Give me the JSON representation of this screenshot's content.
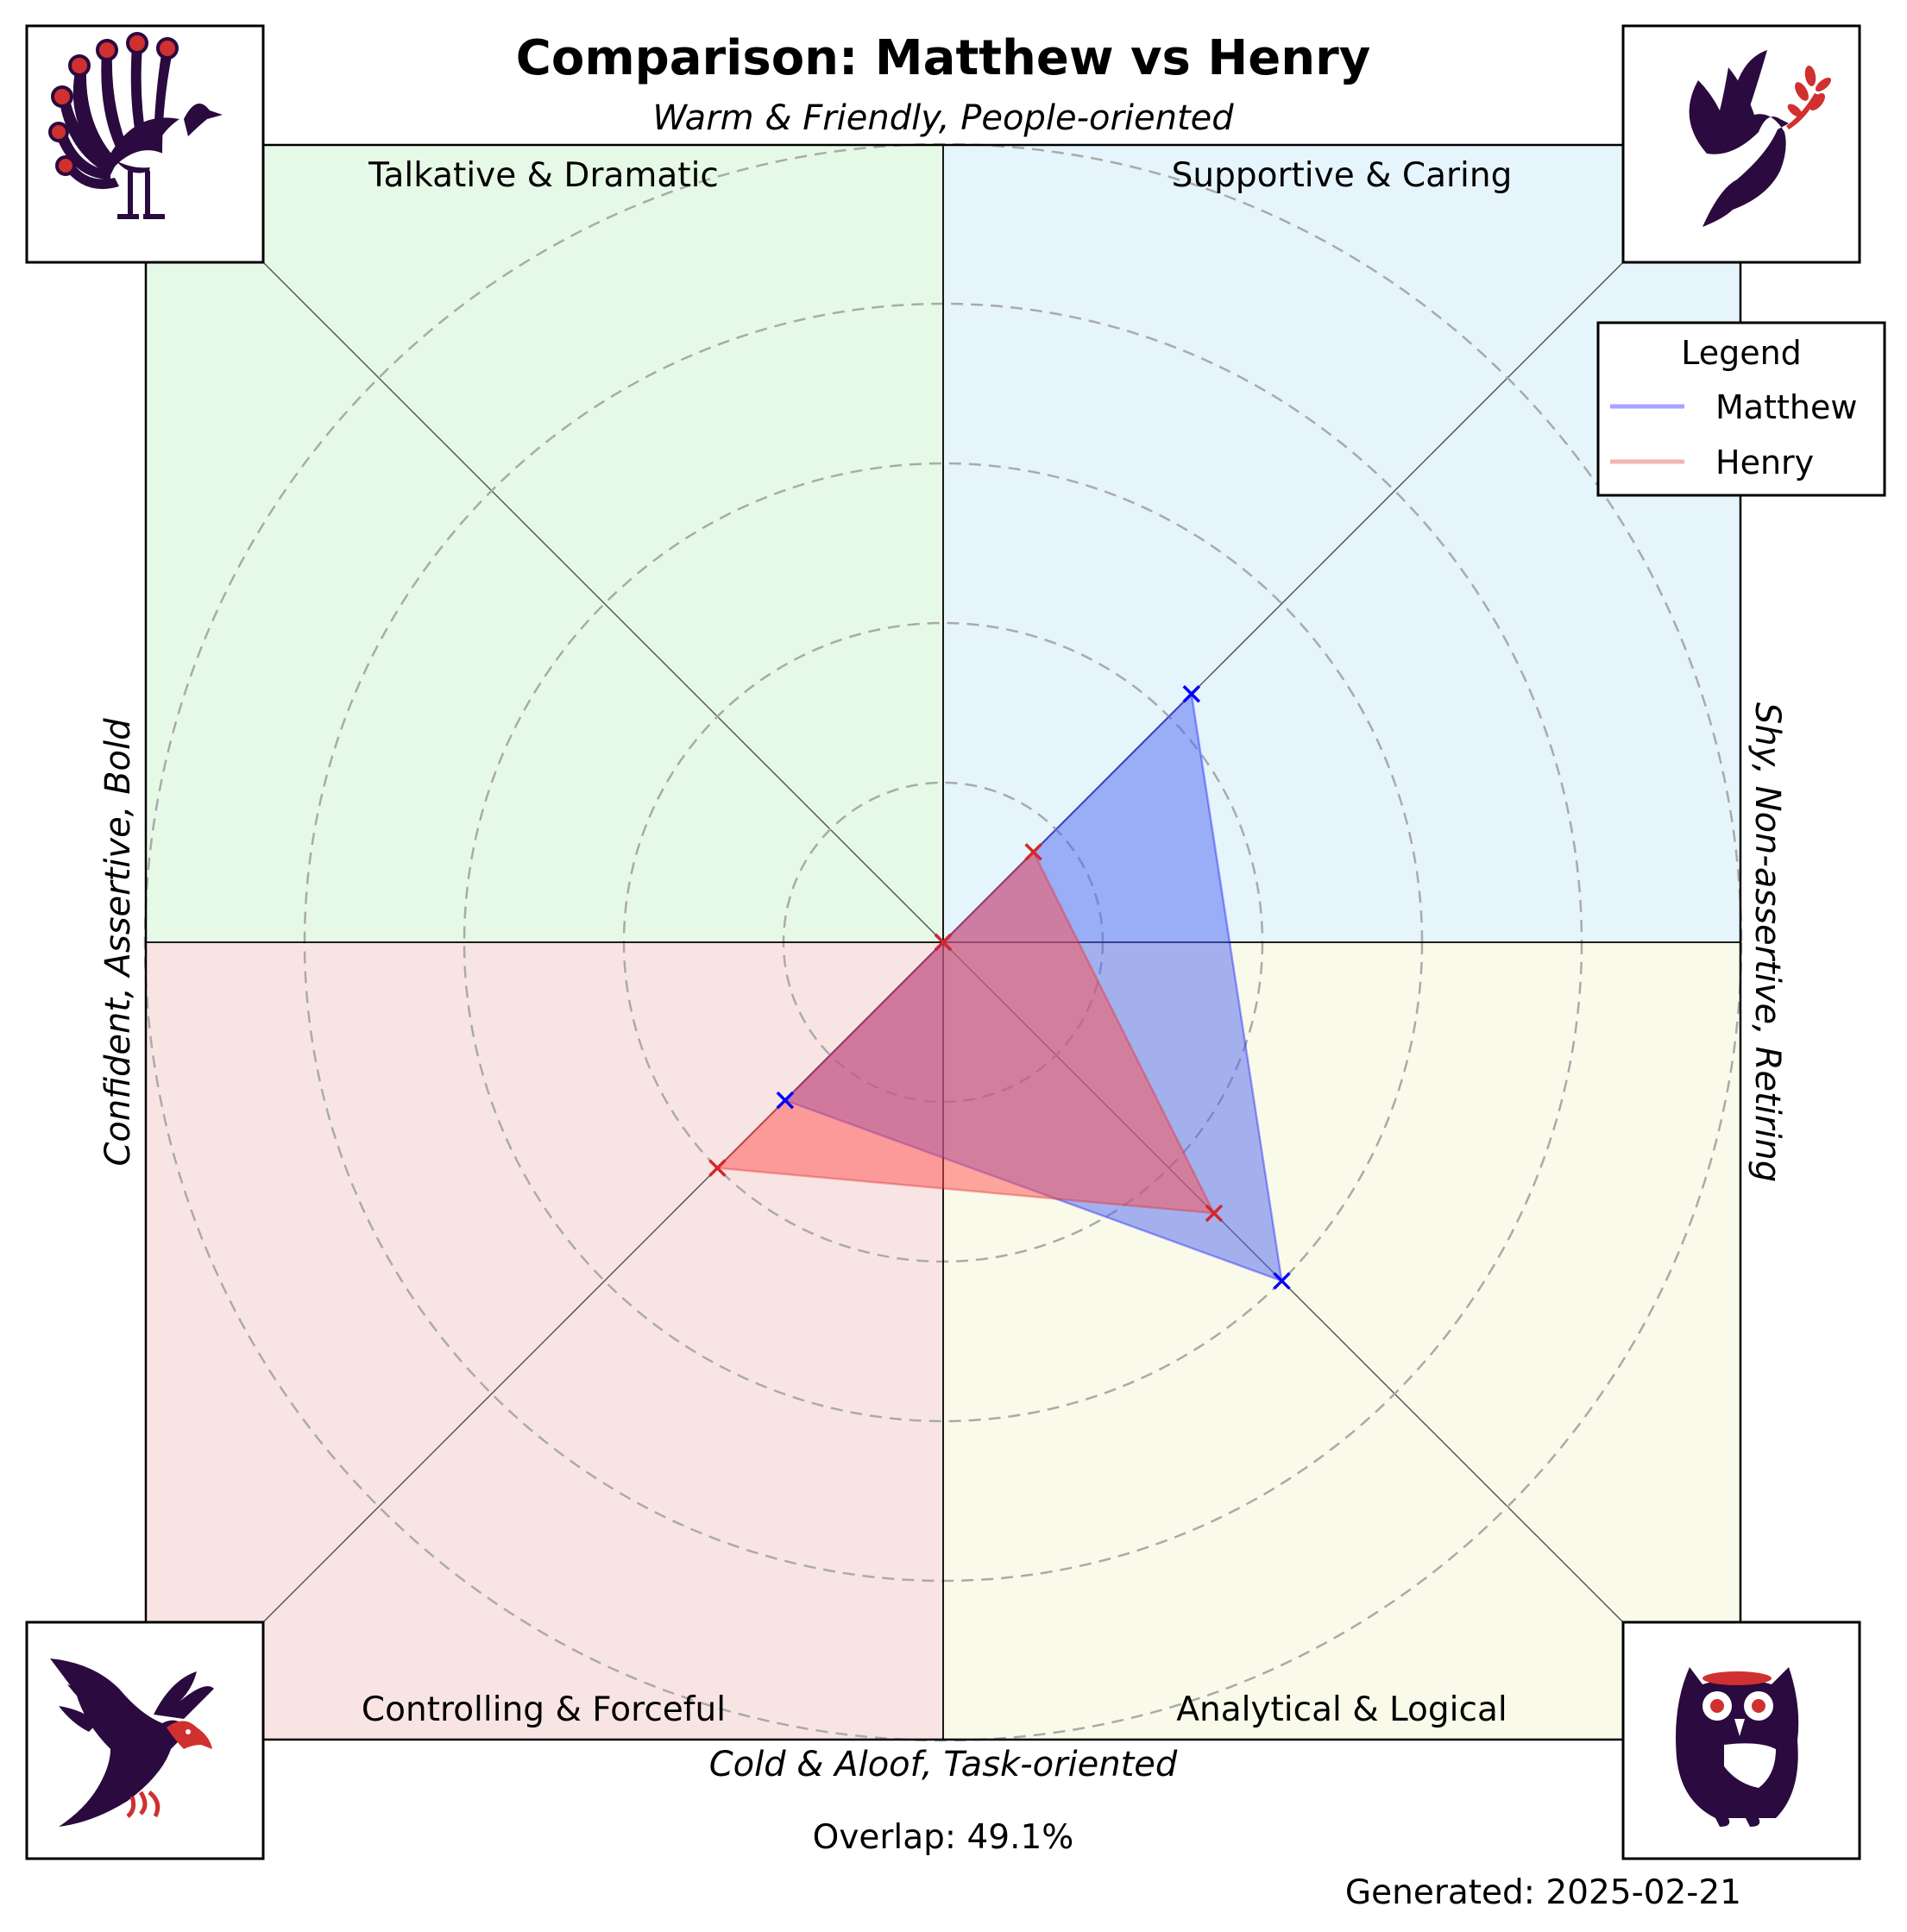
{
  "chart_data": {
    "type": "radar",
    "title": "Comparison: Matthew vs Henry",
    "axis_labels": {
      "top": "Warm & Friendly, People-oriented",
      "bottom": "Cold & Aloof, Task-oriented",
      "left": "Confident, Assertive, Bold",
      "right": "Shy, Non-assertive, Retiring"
    },
    "categories": [
      "Supportive & Caring",
      "Talkative & Dramatic",
      "Controlling & Forceful",
      "Analytical & Logical"
    ],
    "quadrant_labels": {
      "top_left": "Talkative & Dramatic",
      "top_right": "Supportive & Caring",
      "bottom_left": "Controlling & Forceful",
      "bottom_right": "Analytical & Logical"
    },
    "quadrant_colors": {
      "top_left": "#e6f9e6",
      "top_right": "#e6f4fc",
      "bottom_left": "#f9e4e4",
      "bottom_right": "#fafaea"
    },
    "rlim": [
      0,
      5
    ],
    "ring_count": 5,
    "grid": true,
    "series": [
      {
        "name": "Matthew",
        "values": [
          2.2,
          0,
          1.4,
          3.0
        ],
        "color": "#0000ff",
        "fill": "#4d66f2"
      },
      {
        "name": "Henry",
        "values": [
          0.8,
          0,
          2.0,
          2.4
        ],
        "color": "#d62728",
        "fill": "#ff4d4d"
      }
    ],
    "legend": {
      "title": "Legend",
      "position": "top-right"
    },
    "icons": {
      "top_left": "peacock-icon",
      "top_right": "dove-icon",
      "bottom_left": "eagle-icon",
      "bottom_right": "owl-icon"
    },
    "overlap_text": "Overlap: 49.1%",
    "generated_text": "Generated: 2025-02-21"
  }
}
